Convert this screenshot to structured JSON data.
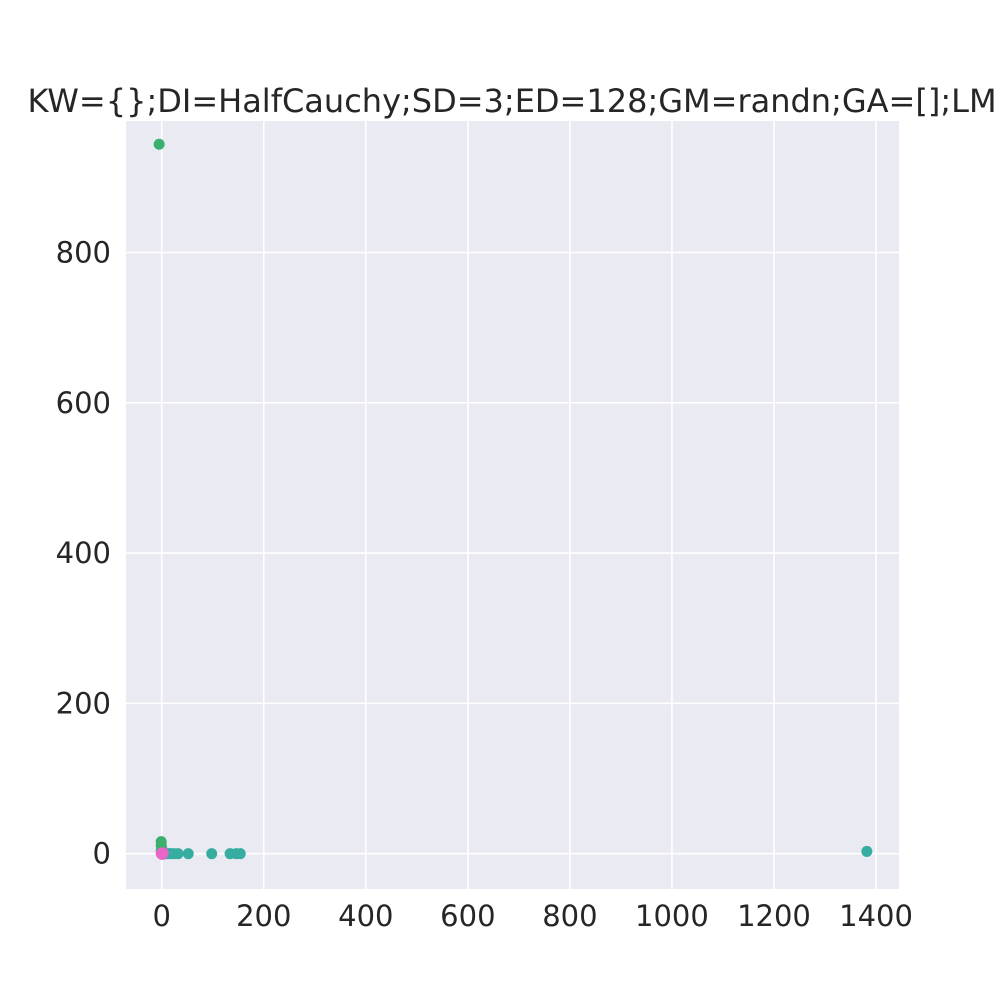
{
  "chart_data": {
    "type": "scatter",
    "title": "KW={};DI=HalfCauchy;SD=3;ED=128;GM=randn;GA=[];LM",
    "xlabel": "",
    "ylabel": "",
    "xlim": [
      -70,
      1445
    ],
    "ylim": [
      -47,
      975
    ],
    "xticks": [
      0,
      200,
      400,
      600,
      800,
      1000,
      1200,
      1400
    ],
    "xtick_labels": [
      "0",
      "200",
      "400",
      "600",
      "800",
      "1000",
      "1200",
      "1400"
    ],
    "yticks": [
      0,
      200,
      400,
      600,
      800
    ],
    "ytick_labels": [
      "0",
      "200",
      "400",
      "600",
      "800"
    ],
    "grid": true,
    "legend": "none",
    "background": "#EAEAF2",
    "grid_color": "#FFFFFF",
    "series": [
      {
        "color": "#3BAF6E",
        "points": [
          [
            -5,
            944
          ],
          [
            -1,
            16
          ],
          [
            -1,
            11
          ],
          [
            0,
            7
          ],
          [
            -1,
            4
          ],
          [
            0,
            2
          ],
          [
            0,
            1
          ]
        ]
      },
      {
        "color": "#36ADA0",
        "points": [
          [
            2,
            0
          ],
          [
            6,
            0
          ],
          [
            10,
            0
          ],
          [
            14,
            0
          ],
          [
            18,
            0
          ],
          [
            24,
            0
          ],
          [
            32,
            0
          ],
          [
            52,
            0
          ],
          [
            98,
            0
          ],
          [
            134,
            0
          ],
          [
            146,
            0
          ],
          [
            154,
            0
          ],
          [
            1382,
            3
          ]
        ]
      },
      {
        "color": "#E766C8",
        "points": [
          [
            -1,
            0
          ],
          [
            0,
            1
          ],
          [
            1,
            -1
          ],
          [
            2,
            0
          ],
          [
            0,
            0
          ],
          [
            3,
            1
          ]
        ]
      }
    ]
  }
}
